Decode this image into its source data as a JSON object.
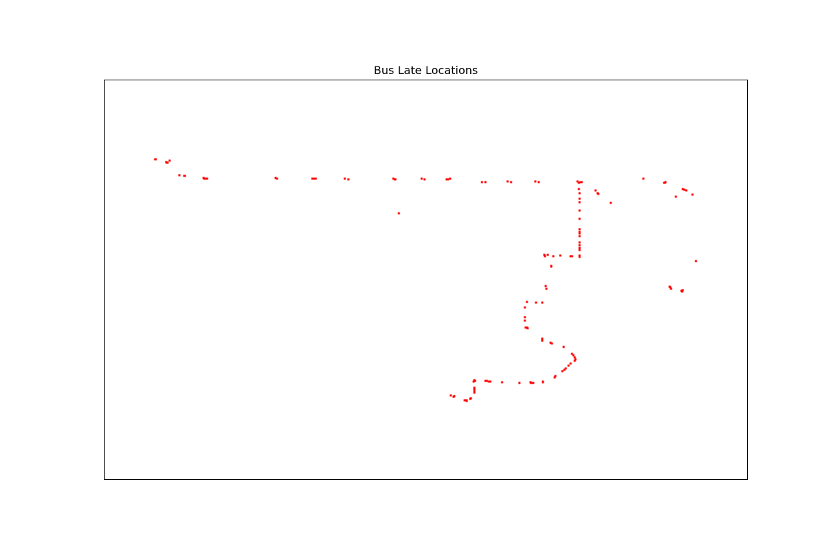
{
  "chart_data": {
    "type": "scatter",
    "title": "Bus Late Locations",
    "xlabel": "",
    "ylabel": "",
    "xlim": [
      0,
      930
    ],
    "ylim": [
      0,
      578
    ],
    "axis_ticks": false,
    "grid": false,
    "marker_color": "#ff0000",
    "series": [
      {
        "points": [
          [
            74,
            463
          ],
          [
            75,
            463
          ],
          [
            90,
            459
          ],
          [
            91,
            458
          ],
          [
            92,
            458
          ],
          [
            95,
            461
          ],
          [
            109,
            440
          ],
          [
            116,
            439
          ],
          [
            117,
            439
          ],
          [
            144,
            436
          ],
          [
            145,
            435
          ],
          [
            148,
            435
          ],
          [
            149,
            435
          ],
          [
            248,
            436
          ],
          [
            250,
            435
          ],
          [
            301,
            435
          ],
          [
            303,
            435
          ],
          [
            306,
            435
          ],
          [
            348,
            435
          ],
          [
            353,
            434
          ],
          [
            418,
            435
          ],
          [
            420,
            434
          ],
          [
            421,
            434
          ],
          [
            426,
            385
          ],
          [
            459,
            435
          ],
          [
            463,
            434
          ],
          [
            495,
            434
          ],
          [
            497,
            434
          ],
          [
            500,
            435
          ],
          [
            546,
            430
          ],
          [
            551,
            430
          ],
          [
            583,
            431
          ],
          [
            588,
            430
          ],
          [
            623,
            431
          ],
          [
            628,
            430
          ],
          [
            684,
            431
          ],
          [
            686,
            429
          ],
          [
            688,
            430
          ],
          [
            690,
            430
          ],
          [
            686,
            420
          ],
          [
            687,
            414
          ],
          [
            687,
            406
          ],
          [
            687,
            401
          ],
          [
            687,
            389
          ],
          [
            687,
            377
          ],
          [
            687,
            362
          ],
          [
            687,
            358
          ],
          [
            687,
            356
          ],
          [
            687,
            352
          ],
          [
            687,
            343
          ],
          [
            687,
            339
          ],
          [
            687,
            335
          ],
          [
            687,
            332
          ],
          [
            687,
            324
          ],
          [
            687,
            322
          ],
          [
            674,
            323
          ],
          [
            676,
            323
          ],
          [
            659,
            324
          ],
          [
            649,
            323
          ],
          [
            636,
            325
          ],
          [
            641,
            325
          ],
          [
            637,
            323
          ],
          [
            646,
            309
          ],
          [
            646,
            308
          ],
          [
            638,
            280
          ],
          [
            639,
            276
          ],
          [
            611,
            257
          ],
          [
            608,
            249
          ],
          [
            608,
            235
          ],
          [
            608,
            230
          ],
          [
            609,
            220
          ],
          [
            611,
            220
          ],
          [
            612,
            219
          ],
          [
            624,
            256
          ],
          [
            633,
            256
          ],
          [
            633,
            204
          ],
          [
            633,
            201
          ],
          [
            645,
            198
          ],
          [
            647,
            197
          ],
          [
            664,
            192
          ],
          [
            676,
            182
          ],
          [
            678,
            180
          ],
          [
            680,
            177
          ],
          [
            681,
            174
          ],
          [
            680,
            172
          ],
          [
            674,
            168
          ],
          [
            671,
            165
          ],
          [
            667,
            161
          ],
          [
            665,
            159
          ],
          [
            662,
            157
          ],
          [
            652,
            150
          ],
          [
            651,
            148
          ],
          [
            634,
            142
          ],
          [
            634,
            141
          ],
          [
            620,
            140
          ],
          [
            617,
            140
          ],
          [
            616,
            141
          ],
          [
            600,
            140
          ],
          [
            575,
            141
          ],
          [
            551,
            143
          ],
          [
            553,
            143
          ],
          [
            556,
            142
          ],
          [
            558,
            142
          ],
          [
            536,
            143
          ],
          [
            535,
            144
          ],
          [
            534,
            142
          ],
          [
            535,
            133
          ],
          [
            535,
            130
          ],
          [
            535,
            128
          ],
          [
            535,
            126
          ],
          [
            530,
            118
          ],
          [
            529,
            117
          ],
          [
            524,
            115
          ],
          [
            524,
            114
          ],
          [
            521,
            115
          ],
          [
            505,
            120
          ],
          [
            506,
            121
          ],
          [
            501,
            122
          ],
          [
            710,
            418
          ],
          [
            713,
            414
          ],
          [
            714,
            413
          ],
          [
            732,
            400
          ],
          [
            779,
            435
          ],
          [
            809,
            429
          ],
          [
            810,
            429
          ],
          [
            811,
            430
          ],
          [
            826,
            409
          ],
          [
            836,
            420
          ],
          [
            838,
            419
          ],
          [
            841,
            418
          ],
          [
            850,
            412
          ],
          [
            855,
            316
          ],
          [
            817,
            279
          ],
          [
            818,
            278
          ],
          [
            819,
            276
          ],
          [
            834,
            273
          ],
          [
            835,
            272
          ],
          [
            836,
            274
          ]
        ]
      }
    ]
  }
}
